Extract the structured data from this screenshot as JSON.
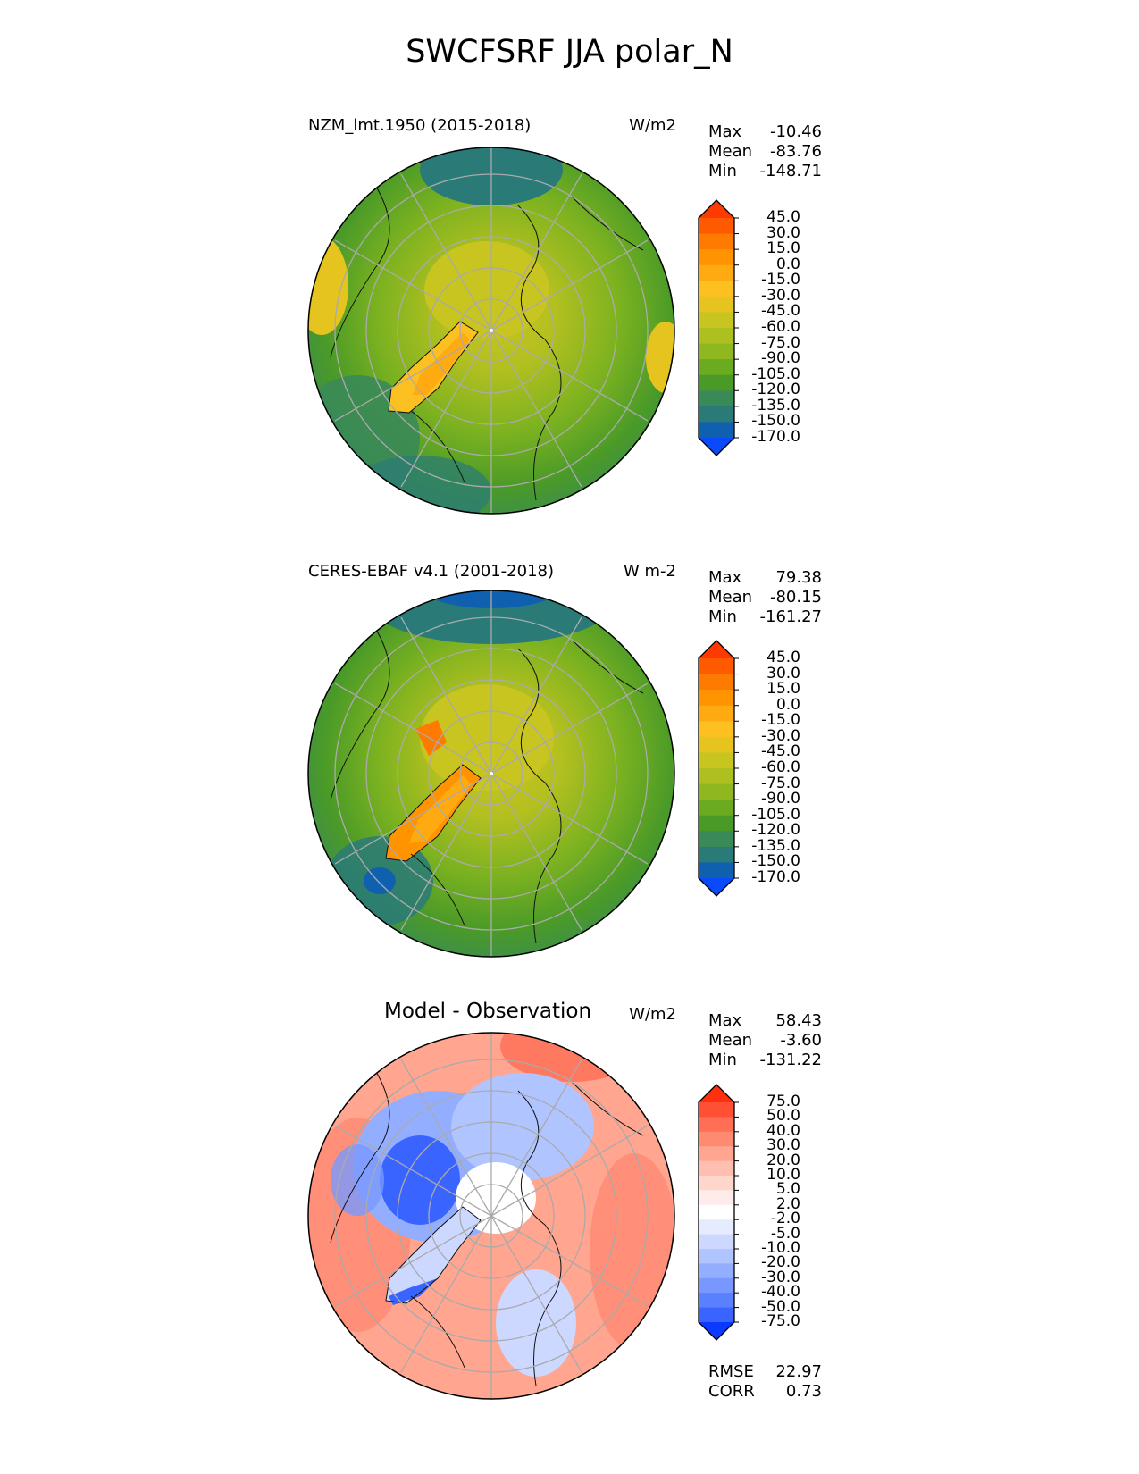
{
  "title": "SWCFSRF JJA polar_N",
  "panels": [
    {
      "title": "NZM_lmt.1950 (2015-2018)",
      "units": "W/m2",
      "stats": [
        {
          "label": "Max",
          "value": "-10.46"
        },
        {
          "label": "Mean",
          "value": "-83.76"
        },
        {
          "label": "Min",
          "value": "-148.71"
        }
      ],
      "colorbar": {
        "ticks": [
          "45.0",
          "30.0",
          "15.0",
          "0.0",
          "-15.0",
          "-30.0",
          "-45.0",
          "-60.0",
          "-75.0",
          "-90.0",
          "-105.0",
          "-120.0",
          "-135.0",
          "-150.0",
          "-170.0"
        ],
        "colors": [
          "#ff3a00",
          "#ff5a00",
          "#ff7a00",
          "#ff9400",
          "#ffaa10",
          "#fcc020",
          "#e6c420",
          "#c8c420",
          "#aebf20",
          "#8fb820",
          "#6bab20",
          "#4a9a28",
          "#3a8a58",
          "#2a7a78",
          "#1060b0",
          "#0a4aff"
        ]
      }
    },
    {
      "title": "CERES-EBAF v4.1 (2001-2018)",
      "units": "W m-2",
      "stats": [
        {
          "label": "Max",
          "value": "79.38"
        },
        {
          "label": "Mean",
          "value": "-80.15"
        },
        {
          "label": "Min",
          "value": "-161.27"
        }
      ],
      "colorbar": {
        "ticks": [
          "45.0",
          "30.0",
          "15.0",
          "0.0",
          "-15.0",
          "-30.0",
          "-45.0",
          "-60.0",
          "-75.0",
          "-90.0",
          "-105.0",
          "-120.0",
          "-135.0",
          "-150.0",
          "-170.0"
        ],
        "colors": [
          "#ff3a00",
          "#ff5a00",
          "#ff7a00",
          "#ff9400",
          "#ffaa10",
          "#fcc020",
          "#e6c420",
          "#c8c420",
          "#aebf20",
          "#8fb820",
          "#6bab20",
          "#4a9a28",
          "#3a8a58",
          "#2a7a78",
          "#1060b0",
          "#0a4aff"
        ]
      }
    },
    {
      "title": "Model - Observation",
      "units": "W/m2",
      "stats": [
        {
          "label": "Max",
          "value": "58.43"
        },
        {
          "label": "Mean",
          "value": "-3.60"
        },
        {
          "label": "Min",
          "value": "-131.22"
        }
      ],
      "extra_stats": [
        {
          "label": "RMSE",
          "value": "22.97"
        },
        {
          "label": "CORR",
          "value": "0.73"
        }
      ],
      "colorbar": {
        "ticks": [
          "75.0",
          "50.0",
          "40.0",
          "30.0",
          "20.0",
          "10.0",
          "5.0",
          "2.0",
          "-2.0",
          "-5.0",
          "-10.0",
          "-20.0",
          "-30.0",
          "-40.0",
          "-50.0",
          "-75.0"
        ],
        "colors": [
          "#ff3010",
          "#ff5035",
          "#ff6e55",
          "#ff8a72",
          "#ffa590",
          "#ffbfb0",
          "#ffd6cc",
          "#ffecea",
          "#ffffff",
          "#e6ecff",
          "#ccd8ff",
          "#b0c4ff",
          "#94aeff",
          "#7898ff",
          "#5a80ff",
          "#3a64ff",
          "#0a3aff"
        ]
      }
    }
  ],
  "chart_data": [
    {
      "type": "heatmap",
      "projection": "north polar stereographic",
      "title": "NZM_lmt.1950 (2015-2018)",
      "units": "W/m2",
      "max": -10.46,
      "mean": -83.76,
      "min": -148.71,
      "levels": [
        -170,
        -150,
        -135,
        -120,
        -105,
        -90,
        -75,
        -60,
        -45,
        -30,
        -15,
        0,
        15,
        30,
        45
      ]
    },
    {
      "type": "heatmap",
      "projection": "north polar stereographic",
      "title": "CERES-EBAF v4.1 (2001-2018)",
      "units": "W m-2",
      "max": 79.38,
      "mean": -80.15,
      "min": -161.27,
      "levels": [
        -170,
        -150,
        -135,
        -120,
        -105,
        -90,
        -75,
        -60,
        -45,
        -30,
        -15,
        0,
        15,
        30,
        45
      ]
    },
    {
      "type": "heatmap",
      "projection": "north polar stereographic",
      "title": "Model - Observation",
      "units": "W/m2",
      "max": 58.43,
      "mean": -3.6,
      "min": -131.22,
      "rmse": 22.97,
      "corr": 0.73,
      "levels": [
        -75,
        -50,
        -40,
        -30,
        -20,
        -10,
        -5,
        -2,
        2,
        5,
        10,
        20,
        30,
        40,
        50,
        75
      ]
    }
  ]
}
